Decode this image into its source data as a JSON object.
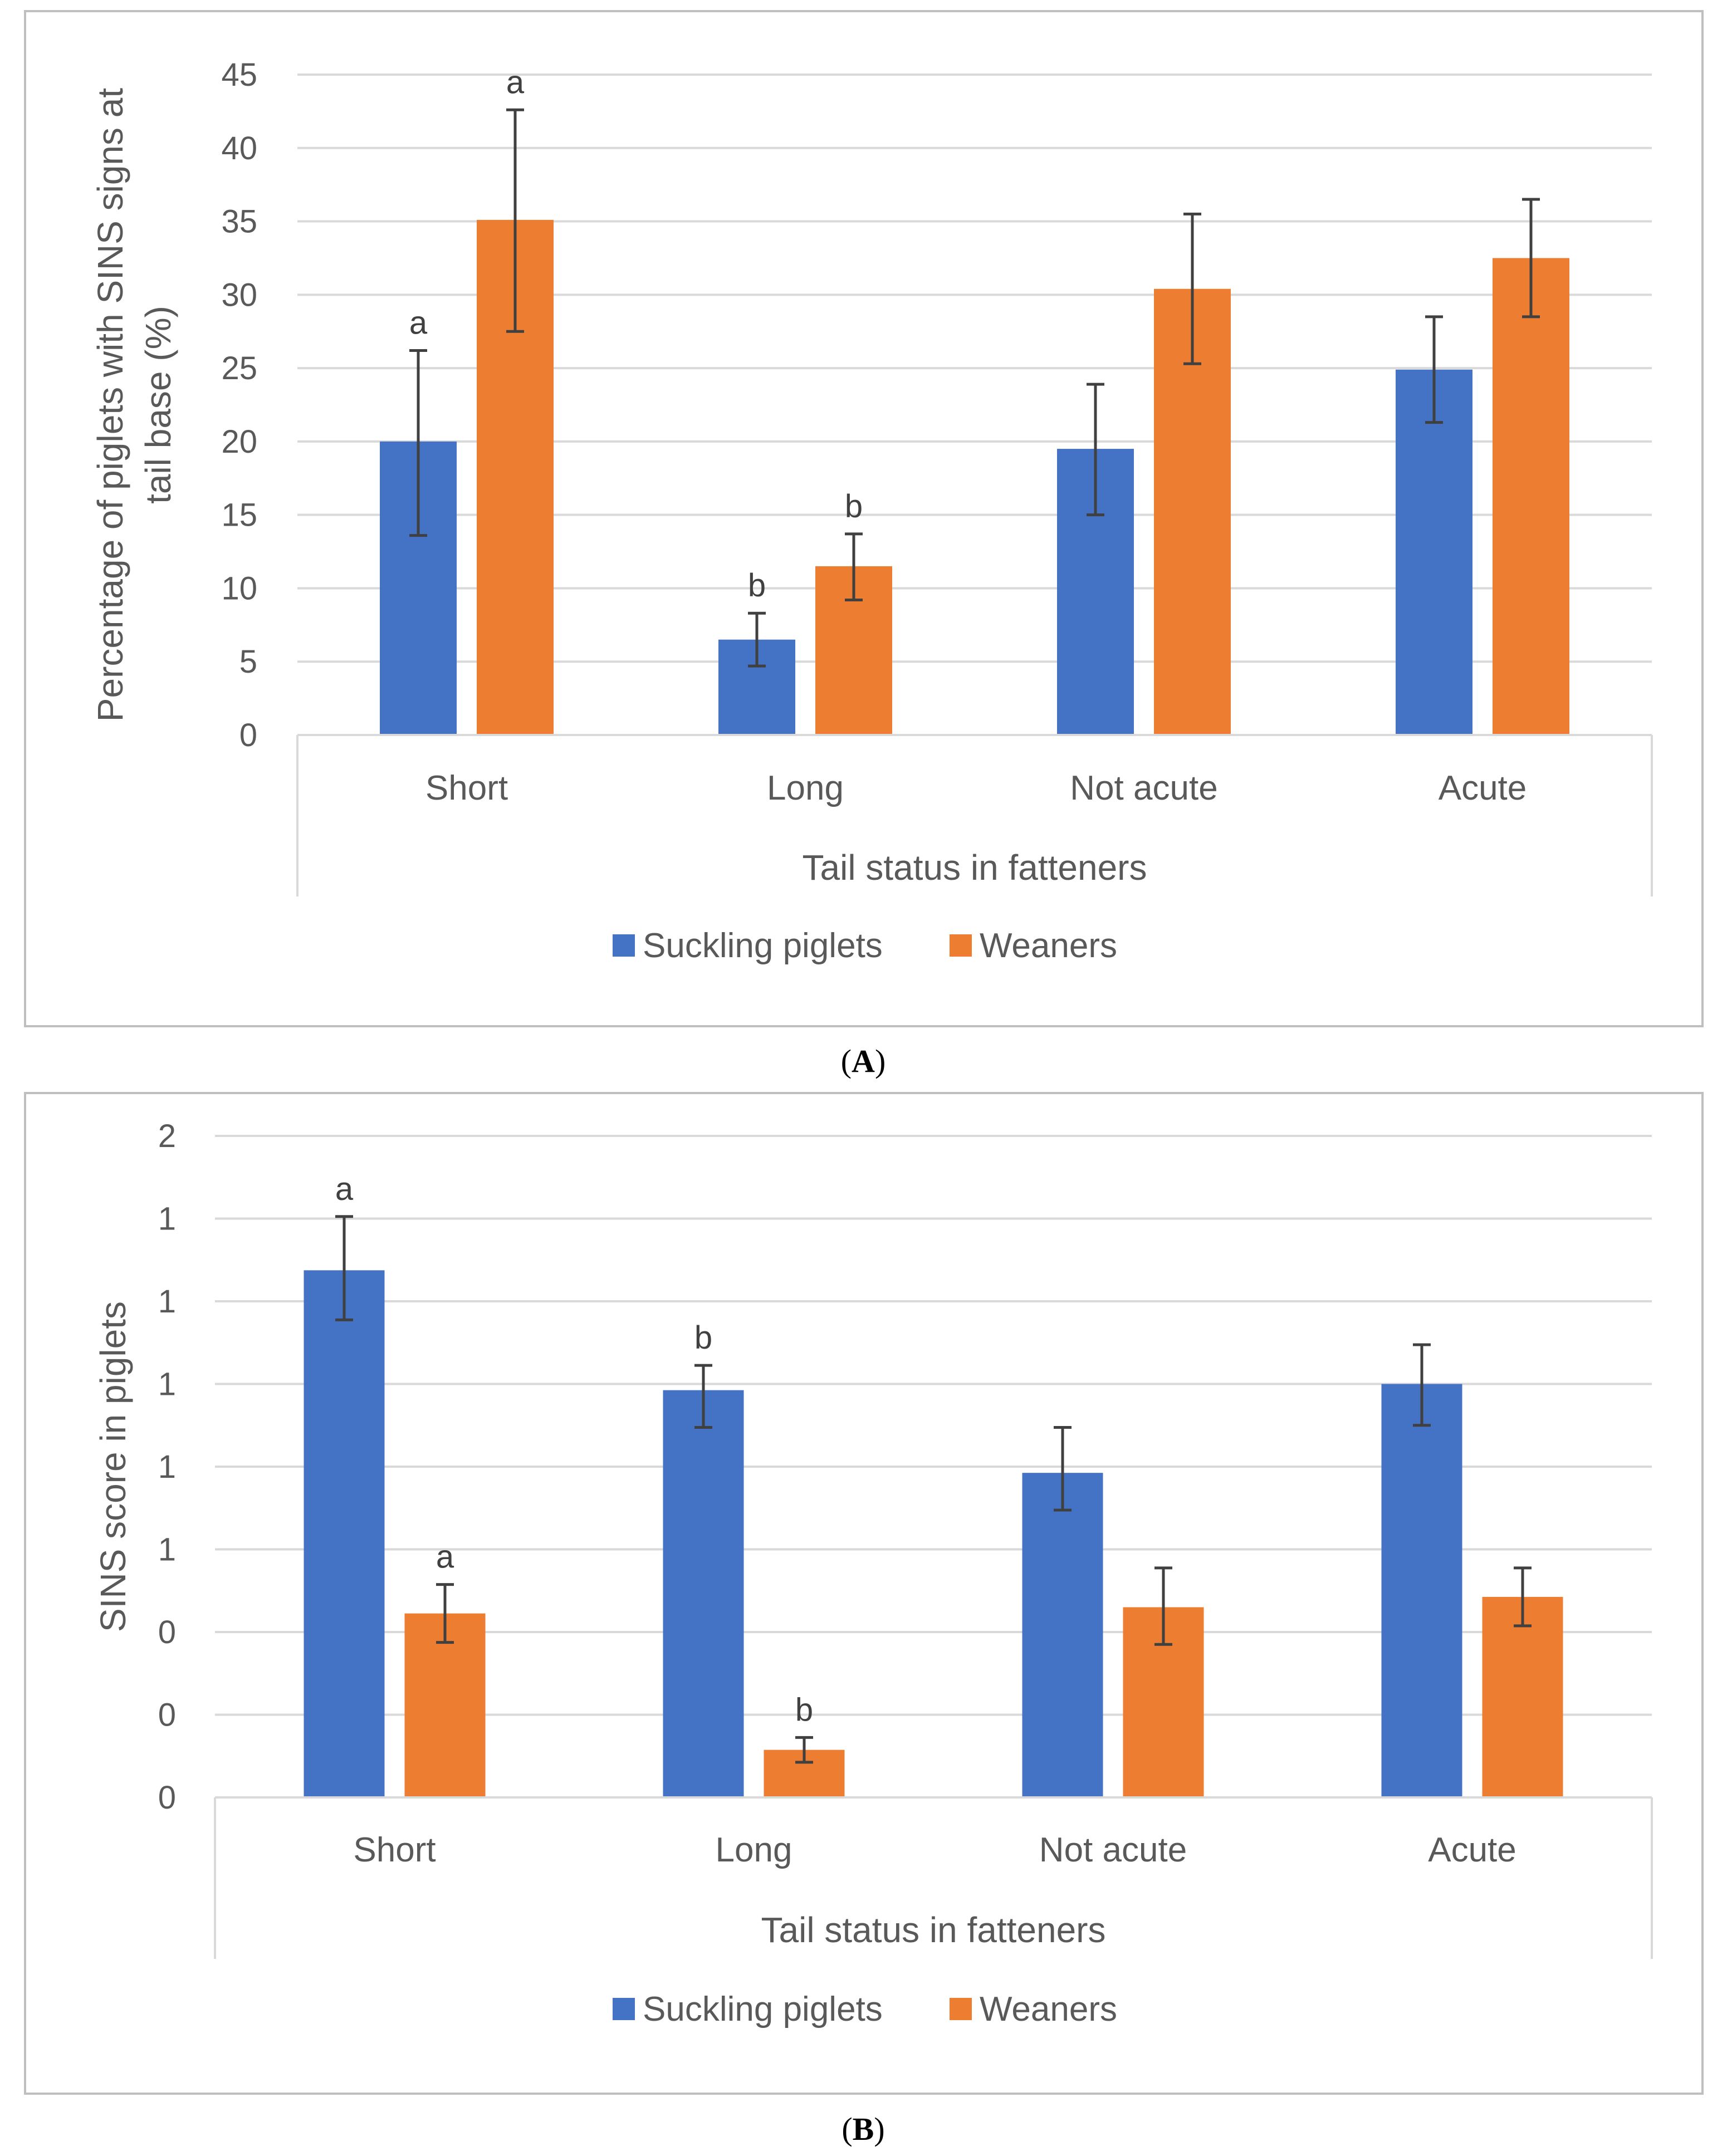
{
  "colors": {
    "suckling": "#4472C4",
    "weaners": "#ED7D31",
    "grid": "#D9D9D9",
    "axis_text": "#595959",
    "error_bar": "#404040",
    "frame": "#BFBFBF"
  },
  "chart_data": [
    {
      "panel_label": "A",
      "type": "bar",
      "title": "",
      "xlabel": "Tail status in fatteners",
      "ylabel": "Percentage of piglets with SINS signs at tail base (%)",
      "categories": [
        "Short",
        "Long",
        "Not acute",
        "Acute"
      ],
      "ylim": [
        0,
        45
      ],
      "yticks": [
        0,
        5,
        10,
        15,
        20,
        25,
        30,
        35,
        40,
        45
      ],
      "ytick_labels": [
        "0",
        "5",
        "10",
        "15",
        "20",
        "25",
        "30",
        "35",
        "40",
        "45"
      ],
      "grid": true,
      "legend": "bottom",
      "series": [
        {
          "name": "Suckling piglets",
          "color": "#4472C4",
          "values": [
            20.0,
            6.5,
            19.5,
            24.9
          ],
          "err_low": [
            13.6,
            4.7,
            15.0,
            21.3
          ],
          "err_high": [
            26.2,
            8.3,
            23.9,
            28.5
          ],
          "annotations": [
            "a",
            "b",
            "",
            ""
          ]
        },
        {
          "name": "Weaners",
          "color": "#ED7D31",
          "values": [
            35.1,
            11.5,
            30.4,
            32.5
          ],
          "err_low": [
            27.5,
            9.2,
            25.3,
            28.5
          ],
          "err_high": [
            42.6,
            13.7,
            35.5,
            36.5
          ],
          "annotations": [
            "a",
            "b",
            "",
            ""
          ]
        }
      ]
    },
    {
      "panel_label": "B",
      "type": "bar",
      "title": "",
      "xlabel": "Tail status in fatteners",
      "ylabel": "SINS score in  piglets",
      "categories": [
        "Short",
        "Long",
        "Not acute",
        "Acute"
      ],
      "ylim": [
        0,
        1.6
      ],
      "yticks": [
        0,
        0.2,
        0.4,
        0.6,
        0.8,
        1.0,
        1.2,
        1.4,
        1.6
      ],
      "ytick_labels": [
        "0",
        "0",
        "0",
        "1",
        "1",
        "1",
        "1",
        "1",
        "2"
      ],
      "grid": true,
      "legend": "bottom",
      "series": [
        {
          "name": "Suckling piglets",
          "color": "#4472C4",
          "values": [
            1.275,
            0.985,
            0.785,
            1.0
          ],
          "err_low": [
            1.155,
            0.895,
            0.695,
            0.9
          ],
          "err_high": [
            1.405,
            1.045,
            0.895,
            1.095
          ],
          "annotations": [
            "a",
            "b",
            "",
            ""
          ]
        },
        {
          "name": "Weaners",
          "color": "#ED7D31",
          "values": [
            0.445,
            0.115,
            0.46,
            0.485
          ],
          "err_low": [
            0.375,
            0.085,
            0.37,
            0.415
          ],
          "err_high": [
            0.515,
            0.145,
            0.555,
            0.555
          ],
          "annotations": [
            "a",
            "b",
            "",
            ""
          ]
        }
      ]
    }
  ]
}
